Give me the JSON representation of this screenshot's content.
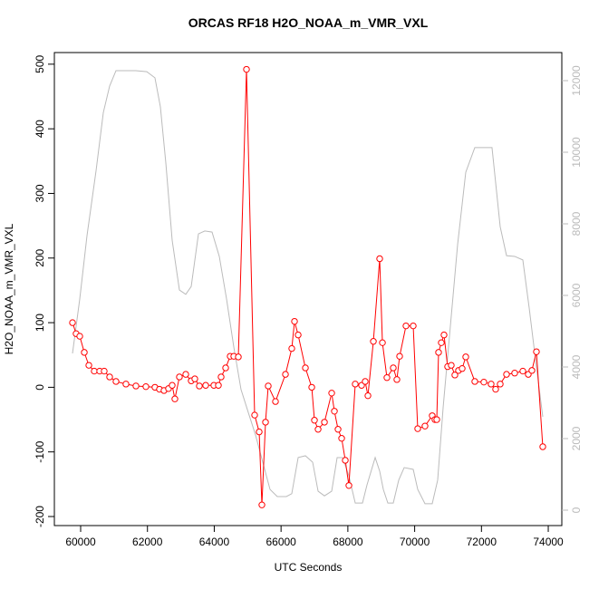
{
  "chart_data": {
    "type": "line",
    "title": "ORCAS RF18 H2O_NOAA_m_VMR_VXL",
    "xlabel": "UTC Seconds",
    "ylabel": "H2O_NOAA_m_VMR_VXL",
    "xlim": [
      59213,
      74406
    ],
    "xticks": [
      60000,
      62000,
      64000,
      66000,
      68000,
      70000,
      72000,
      74000
    ],
    "ylim": [
      -214,
      518
    ],
    "yticks": [
      -200,
      -100,
      0,
      100,
      200,
      300,
      400,
      500
    ],
    "y2lim": [
      -430,
      12785
    ],
    "y2ticks": [
      0,
      2000,
      4000,
      6000,
      8000,
      10000,
      12000
    ],
    "y2color": "#bbbbbb",
    "series": [
      {
        "color": "#bbbbbb",
        "axis": "y2",
        "marker": "none",
        "x": [
          59756,
          59973,
          60190,
          60462,
          60679,
          60868,
          61058,
          61655,
          61980,
          62224,
          62387,
          62550,
          62740,
          62957,
          63147,
          63310,
          63527,
          63717,
          63934,
          64151,
          64368,
          64585,
          64802,
          65019,
          65236,
          65453,
          65670,
          65887,
          66158,
          66321,
          66512,
          66729,
          66946,
          67109,
          67299,
          67516,
          67679,
          67841,
          68031,
          68221,
          68438,
          68574,
          68818,
          68953,
          69062,
          69197,
          69360,
          69523,
          69686,
          69957,
          70092,
          70309,
          70526,
          70689,
          70852,
          71069,
          71286,
          71530,
          71801,
          72072,
          72316,
          72561,
          72751,
          72995,
          73239,
          73429,
          73646,
          73836
        ],
        "values": [
          4380,
          5900,
          7670,
          9490,
          11110,
          11850,
          12280,
          12280,
          12250,
          12080,
          11270,
          9700,
          7540,
          6150,
          6030,
          6250,
          7720,
          7800,
          7770,
          7090,
          5900,
          4560,
          3370,
          2730,
          2100,
          1340,
          580,
          380,
          380,
          460,
          1470,
          1520,
          1340,
          530,
          400,
          530,
          1470,
          1470,
          960,
          200,
          200,
          710,
          1470,
          1090,
          580,
          200,
          200,
          840,
          1190,
          1140,
          580,
          180,
          180,
          840,
          2860,
          5140,
          7420,
          9440,
          10130,
          10130,
          10130,
          7920,
          7110,
          7090,
          6990,
          5650,
          4000,
          2610
        ]
      },
      {
        "color": "#ff0000",
        "axis": "y",
        "marker": "circle",
        "x": [
          59756,
          59864,
          59973,
          60109,
          60245,
          60407,
          60570,
          60705,
          60868,
          61058,
          61356,
          61655,
          61953,
          62224,
          62360,
          62495,
          62631,
          62740,
          62821,
          62957,
          63147,
          63310,
          63418,
          63554,
          63744,
          63988,
          64124,
          64205,
          64341,
          64477,
          64585,
          64721,
          64965,
          65209,
          65345,
          65426,
          65535,
          65616,
          65833,
          66132,
          66321,
          66403,
          66512,
          66729,
          66919,
          67000,
          67109,
          67299,
          67516,
          67597,
          67706,
          67814,
          67923,
          68031,
          68221,
          68411,
          68519,
          68601,
          68764,
          68953,
          69035,
          69170,
          69360,
          69468,
          69550,
          69740,
          69957,
          70092,
          70309,
          70526,
          70607,
          70662,
          70716,
          70798,
          70879,
          70987,
          71096,
          71204,
          71313,
          71422,
          71530,
          71801,
          72072,
          72289,
          72425,
          72561,
          72751,
          72995,
          73239,
          73402,
          73510,
          73646,
          73836
        ],
        "values": [
          100,
          83,
          79,
          54,
          34,
          25,
          25,
          25,
          16,
          9,
          5,
          2,
          1,
          0,
          -3,
          -5,
          -2,
          3,
          -18,
          16,
          20,
          10,
          13,
          2,
          3,
          3,
          3,
          16,
          30,
          48,
          48,
          47,
          492,
          -43,
          -69,
          -182,
          -54,
          2,
          -22,
          20,
          60,
          102,
          81,
          30,
          0,
          -51,
          -65,
          -54,
          -9,
          -37,
          -65,
          -79,
          -113,
          -152,
          5,
          3,
          9,
          -13,
          71,
          199,
          69,
          15,
          30,
          12,
          48,
          95,
          95,
          -64,
          -60,
          -44,
          -50,
          -50,
          54,
          69,
          81,
          32,
          34,
          19,
          26,
          29,
          47,
          9,
          8,
          5,
          -3,
          5,
          20,
          22,
          25,
          20,
          26,
          55,
          -92
        ]
      }
    ]
  }
}
